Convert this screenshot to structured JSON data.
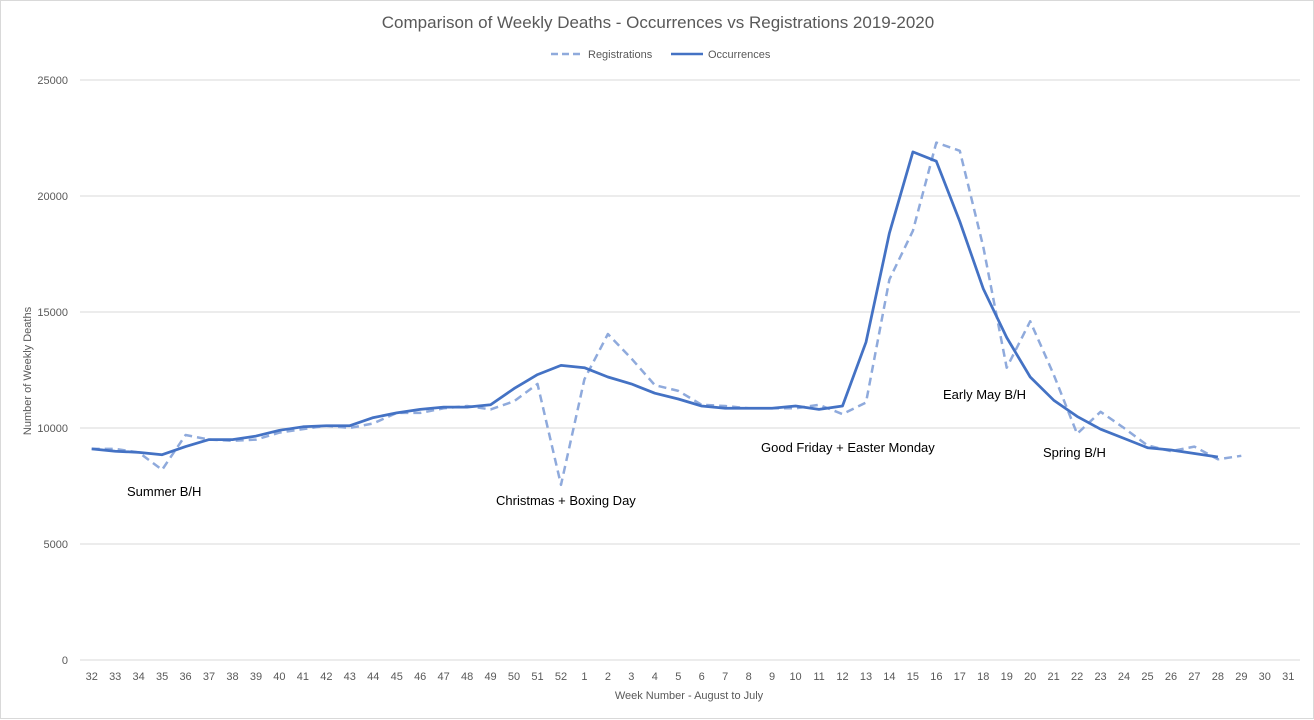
{
  "chart_data": {
    "type": "line",
    "title": "Comparison of Weekly Deaths - Occurrences vs Registrations 2019-2020",
    "xlabel": "Week Number  - August to July",
    "ylabel": "Number  of Weekly Deaths",
    "ylim": [
      0,
      25000
    ],
    "yticks": [
      0,
      5000,
      10000,
      15000,
      20000,
      25000
    ],
    "grid": true,
    "legend_position": "top",
    "categories": [
      "32",
      "33",
      "34",
      "35",
      "36",
      "37",
      "38",
      "39",
      "40",
      "41",
      "42",
      "43",
      "44",
      "45",
      "46",
      "47",
      "48",
      "49",
      "50",
      "51",
      "52",
      "1",
      "2",
      "3",
      "4",
      "5",
      "6",
      "7",
      "8",
      "9",
      "10",
      "11",
      "12",
      "13",
      "14",
      "15",
      "16",
      "17",
      "18",
      "19",
      "20",
      "21",
      "22",
      "23",
      "24",
      "25",
      "26",
      "27",
      "28",
      "29",
      "30",
      "31"
    ],
    "series": [
      {
        "name": "Registrations",
        "color": "#8faadc",
        "style": "dashed",
        "values": [
          9100,
          9100,
          8950,
          8200,
          9700,
          9500,
          9450,
          9500,
          9800,
          9950,
          10100,
          10000,
          10200,
          10650,
          10650,
          10850,
          10950,
          10800,
          11150,
          11900,
          7550,
          12100,
          14050,
          13000,
          11850,
          11600,
          11000,
          10950,
          10850,
          10850,
          10850,
          11000,
          10600,
          11100,
          16400,
          18500,
          22300,
          21950,
          17800,
          12600,
          14600,
          12300,
          9750,
          10700,
          10000,
          9250,
          9000,
          9200,
          8650,
          8800,
          null,
          null
        ]
      },
      {
        "name": "Occurrences",
        "color": "#4472c4",
        "style": "solid",
        "values": [
          9100,
          9000,
          8950,
          8850,
          9200,
          9500,
          9500,
          9650,
          9900,
          10050,
          10100,
          10100,
          10450,
          10650,
          10800,
          10900,
          10900,
          11000,
          11700,
          12300,
          12700,
          12600,
          12200,
          11900,
          11500,
          11250,
          10950,
          10850,
          10850,
          10850,
          10950,
          10800,
          10950,
          13700,
          18400,
          21900,
          21500,
          18900,
          16000,
          13900,
          12200,
          11200,
          10500,
          9950,
          9550,
          9150,
          9050,
          8900,
          8750,
          null,
          null,
          null
        ]
      }
    ],
    "annotations": [
      "Summer B/H",
      "Christmas + Boxing Day",
      "Good Friday + Easter Monday",
      "Early May B/H",
      "Spring B/H"
    ]
  }
}
